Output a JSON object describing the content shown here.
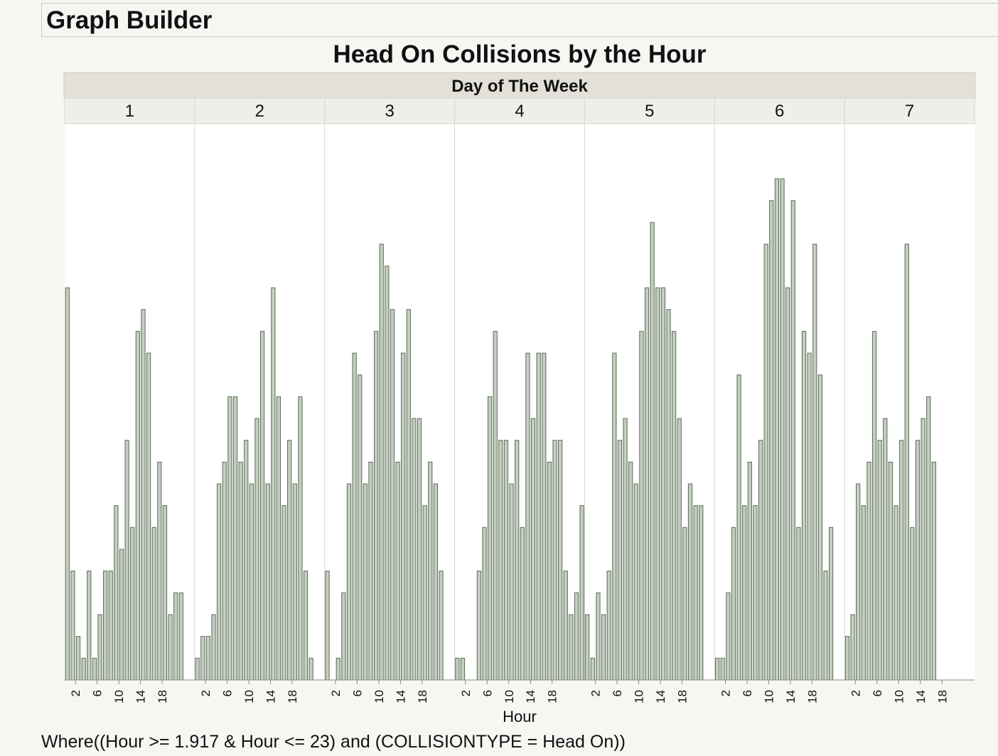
{
  "window": {
    "title": "Graph Builder"
  },
  "chart_data": {
    "type": "bar",
    "title": "Head On Collisions by the Hour",
    "group_label": "Day of The Week",
    "groups": [
      "1",
      "2",
      "3",
      "4",
      "5",
      "6",
      "7"
    ],
    "xlabel": "Hour",
    "ylabel": "",
    "x_ticks": [
      "2",
      "6",
      "10",
      "14",
      "18"
    ],
    "hours": [
      0,
      1,
      2,
      3,
      4,
      5,
      6,
      7,
      8,
      9,
      10,
      11,
      12,
      13,
      14,
      15,
      16,
      17,
      18,
      19,
      20,
      21,
      22,
      23
    ],
    "ylim": [
      0,
      25.5
    ],
    "y_axis_visible": false,
    "grid": false,
    "bar_color": "#c3cfbf",
    "bar_edge_color": "#5c6b5a",
    "series": [
      {
        "values": [
          18,
          5,
          2,
          1,
          5,
          1,
          3,
          5,
          5,
          8,
          6,
          11,
          7,
          16,
          17,
          15,
          7,
          10,
          8,
          3,
          4,
          4,
          0,
          0
        ]
      },
      {
        "values": [
          1,
          2,
          2,
          3,
          9,
          10,
          13,
          13,
          10,
          11,
          9,
          12,
          16,
          9,
          18,
          13,
          8,
          11,
          9,
          13,
          5,
          1,
          0,
          0
        ]
      },
      {
        "values": [
          5,
          0,
          1,
          4,
          9,
          15,
          14,
          9,
          10,
          16,
          20,
          19,
          17,
          10,
          15,
          17,
          12,
          12,
          8,
          10,
          9,
          5,
          0,
          0
        ]
      },
      {
        "values": [
          1,
          1,
          0,
          0,
          5,
          7,
          13,
          16,
          11,
          11,
          9,
          11,
          7,
          15,
          12,
          15,
          15,
          10,
          11,
          11,
          5,
          3,
          4,
          8
        ]
      },
      {
        "values": [
          3,
          1,
          4,
          3,
          5,
          15,
          11,
          12,
          10,
          9,
          16,
          18,
          21,
          18,
          18,
          17,
          16,
          12,
          7,
          9,
          8,
          8,
          0,
          0
        ]
      },
      {
        "values": [
          1,
          1,
          4,
          7,
          14,
          8,
          10,
          8,
          11,
          20,
          22,
          23,
          23,
          18,
          22,
          7,
          16,
          15,
          20,
          14,
          5,
          7,
          0,
          0
        ]
      },
      {
        "values": [
          2,
          3,
          9,
          8,
          10,
          16,
          11,
          12,
          10,
          8,
          11,
          20,
          7,
          11,
          12,
          13,
          10,
          0,
          0,
          0,
          0,
          0,
          0,
          0
        ]
      }
    ]
  },
  "footer": {
    "where_clause": "Where((Hour >= 1.917 & Hour <= 23) and (COLLISIONTYPE = Head On))"
  }
}
